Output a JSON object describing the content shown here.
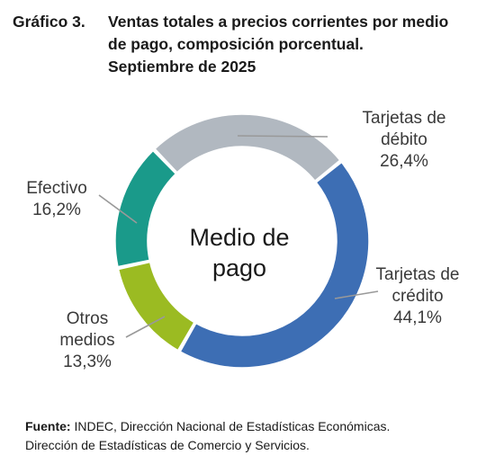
{
  "header": {
    "figure_number": "Gráfico 3.",
    "title_lines": [
      "Ventas totales a precios corrientes por medio",
      "de pago, composición porcentual.",
      "Septiembre de 2025"
    ]
  },
  "chart_data": {
    "type": "pie",
    "variant": "donut",
    "center_label_lines": [
      "Medio de",
      "pago"
    ],
    "slices": [
      {
        "name": "Tarjetas de débito",
        "label_lines": [
          "Tarjetas de",
          "débito"
        ],
        "value": 26.4,
        "value_label": "26,4%",
        "color": "#b1b8c0"
      },
      {
        "name": "Tarjetas de crédito",
        "label_lines": [
          "Tarjetas de",
          "crédito"
        ],
        "value": 44.1,
        "value_label": "44,1%",
        "color": "#3d6eb4"
      },
      {
        "name": "Otros medios",
        "label_lines": [
          "Otros",
          "medios"
        ],
        "value": 13.3,
        "value_label": "13,3%",
        "color": "#9bbb22"
      },
      {
        "name": "Efectivo",
        "label_lines": [
          "Efectivo"
        ],
        "value": 16.2,
        "value_label": "16,2%",
        "color": "#1a9a8a"
      }
    ],
    "leader_line_color": "#999999"
  },
  "footer": {
    "source_label": "Fuente:",
    "source_line1": " INDEC, Dirección Nacional de Estadísticas Económicas.",
    "source_line2": "Dirección de Estadísticas de Comercio y Servicios."
  }
}
